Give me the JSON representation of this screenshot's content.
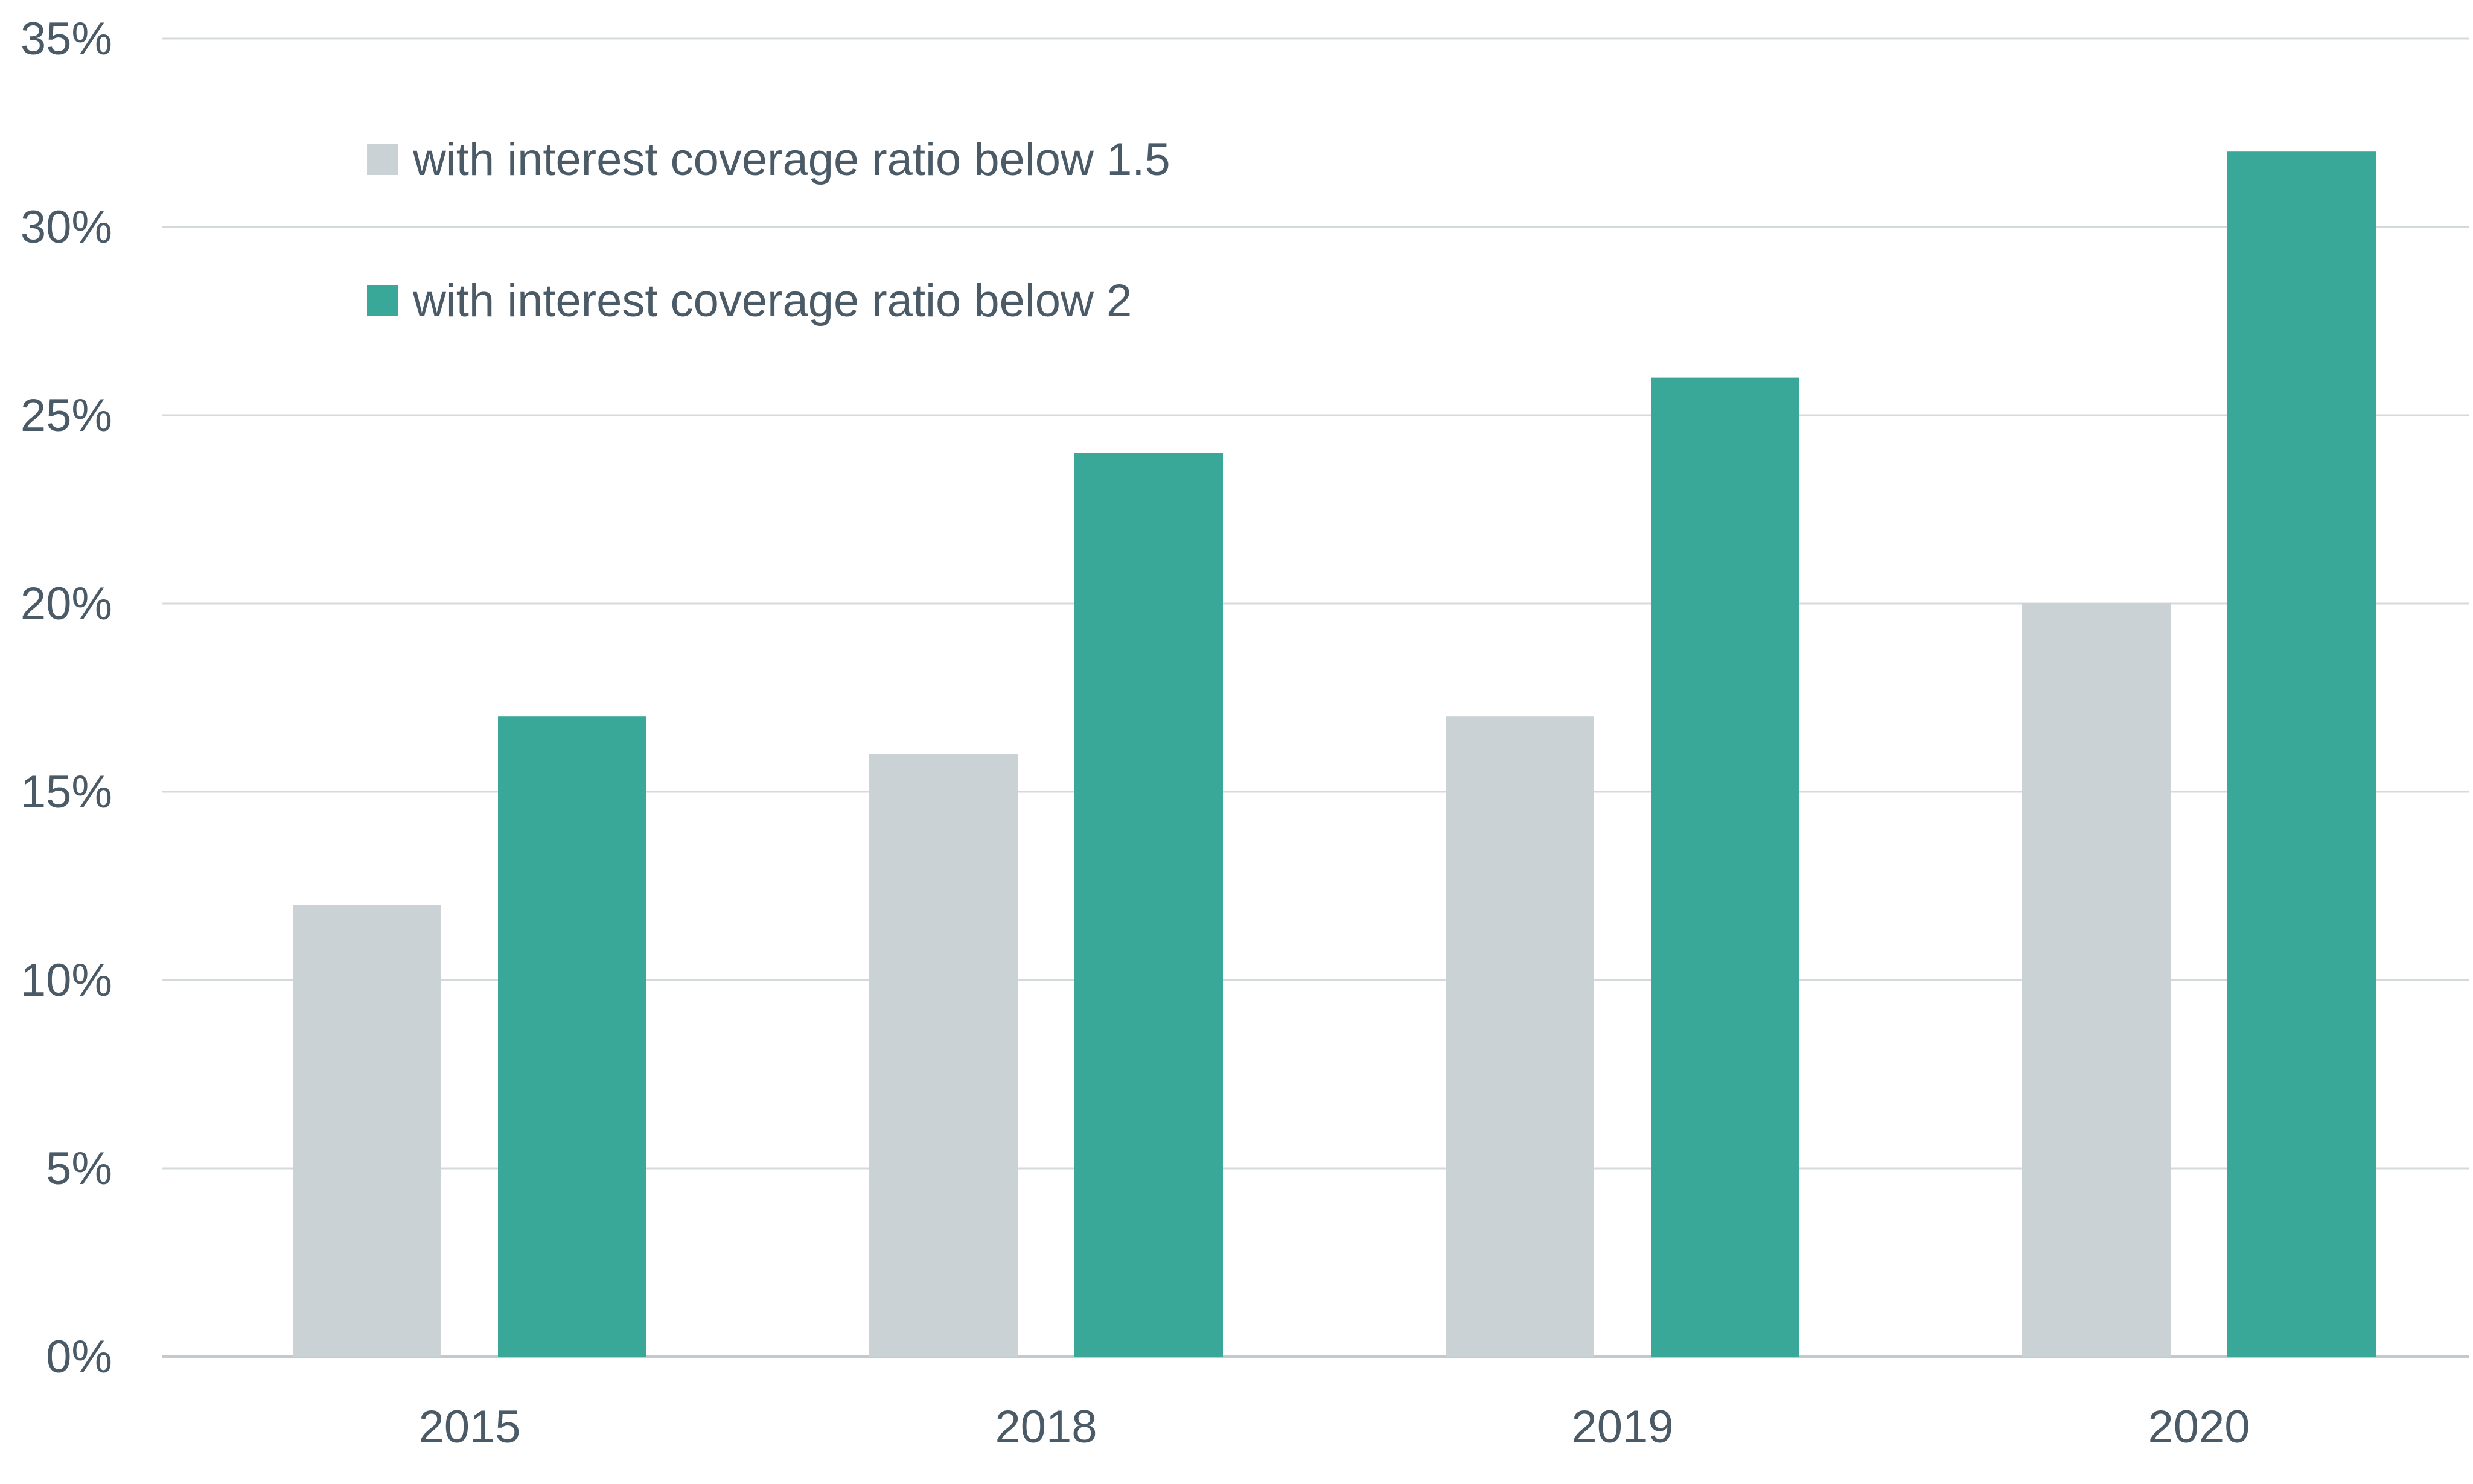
{
  "chart_data": {
    "type": "bar",
    "title": "",
    "xlabel": "",
    "ylabel": "",
    "categories": [
      "2015",
      "2018",
      "2019",
      "2020"
    ],
    "series": [
      {
        "name": "with interest coverage ratio below 1.5",
        "color": "#cad2d5",
        "values": [
          12,
          16,
          17,
          20
        ]
      },
      {
        "name": "with interest coverage ratio below 2",
        "color": "#3aa898",
        "values": [
          17,
          24,
          26,
          32
        ]
      }
    ],
    "ylim": [
      0,
      35
    ],
    "yticks": [
      0,
      5,
      10,
      15,
      20,
      25,
      30,
      35
    ],
    "ytick_labels": [
      "0%",
      "5%",
      "10%",
      "15%",
      "20%",
      "25%",
      "30%",
      "35%"
    ],
    "grid": true,
    "legend_position": "top-left"
  }
}
